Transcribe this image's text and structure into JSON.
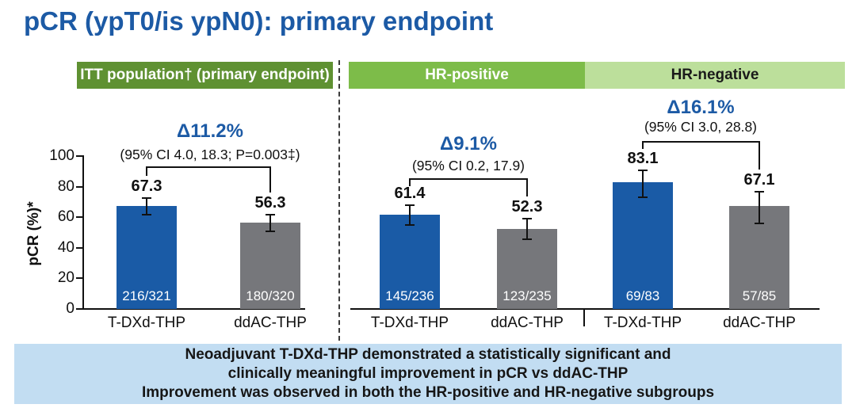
{
  "title": "pCR (ypT0/is ypN0): primary endpoint",
  "colors": {
    "title_blue": "#1c5aa5",
    "delta_blue": "#1c5aa5",
    "bar_blue": "#1a5ba6",
    "bar_gray": "#76777b",
    "itt_header_green": "#5f9132",
    "hr_positive_green": "#7dbc49",
    "hr_negative_green": "#bcdf9b",
    "banner_blue": "#c2ddf2"
  },
  "chart_data": {
    "type": "bar",
    "ylabel": "pCR (%)*",
    "ylim": [
      0,
      100
    ],
    "yticks": [
      0,
      20,
      40,
      60,
      80,
      100
    ],
    "grid": false,
    "legend": "none",
    "groups": [
      {
        "header": "ITT population† (primary endpoint)",
        "delta": "Δ11.2%",
        "ci": "(95% CI 4.0, 18.3; P=0.003‡)",
        "bars": [
          {
            "label": "T-DXd-THP",
            "value": 67.3,
            "fraction": "216/321",
            "ci_low": 61.8,
            "ci_high": 72.4,
            "color_key": "bar_blue"
          },
          {
            "label": "ddAC-THP",
            "value": 56.3,
            "fraction": "180/320",
            "ci_low": 50.6,
            "ci_high": 61.8,
            "color_key": "bar_gray"
          }
        ]
      },
      {
        "header": "HR-positive",
        "delta": "Δ9.1%",
        "ci": "(95% CI 0.2, 17.9)",
        "bars": [
          {
            "label": "T-DXd-THP",
            "value": 61.4,
            "fraction": "145/236",
            "ci_low": 54.9,
            "ci_high": 67.7,
            "color_key": "bar_blue"
          },
          {
            "label": "ddAC-THP",
            "value": 52.3,
            "fraction": "123/235",
            "ci_low": 45.7,
            "ci_high": 58.9,
            "color_key": "bar_gray"
          }
        ]
      },
      {
        "header": "HR-negative",
        "delta": "Δ16.1%",
        "ci": "(95% CI 3.0, 28.8)",
        "bars": [
          {
            "label": "T-DXd-THP",
            "value": 83.1,
            "fraction": "69/83",
            "ci_low": 73.3,
            "ci_high": 90.5,
            "color_key": "bar_blue"
          },
          {
            "label": "ddAC-THP",
            "value": 67.1,
            "fraction": "57/85",
            "ci_low": 56.0,
            "ci_high": 76.7,
            "color_key": "bar_gray"
          }
        ]
      }
    ]
  },
  "banner": {
    "lines": [
      "Neoadjuvant T-DXd-THP demonstrated a statistically significant and",
      "clinically meaningful improvement in pCR vs ddAC-THP",
      "Improvement was observed in both the HR-positive and HR-negative subgroups"
    ]
  }
}
